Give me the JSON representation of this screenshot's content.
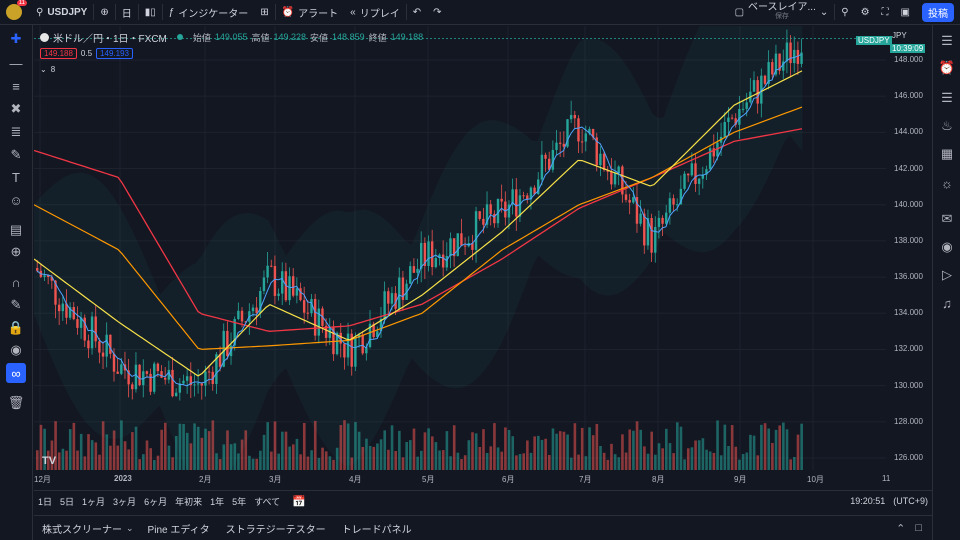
{
  "topbar": {
    "avatar_badge": "11",
    "symbol": "USDJPY",
    "interval": "日",
    "indicators_label": "インジケーター",
    "alert_label": "アラート",
    "replay_label": "リプレイ",
    "layout_title": "ベースレイア...",
    "layout_sub": "保存",
    "post_label": "投稿"
  },
  "legend": {
    "title": "米ドル／円・1日・FXCM",
    "o_label": "始値",
    "o": "149.055",
    "h_label": "高値",
    "h": "149.228",
    "l_label": "安値",
    "l": "148.859",
    "c_label": "終値",
    "c": "149.188",
    "bid": "149.188",
    "spread": "0.5",
    "ask": "149.193",
    "collapse": "8"
  },
  "price_axis": {
    "currency": "JPY",
    "last_badge": "USDJPY",
    "countdown": "10:39:09",
    "ticks": [
      "148.000",
      "146.000",
      "144.000",
      "142.000",
      "140.000",
      "138.000",
      "136.000",
      "134.000",
      "132.000",
      "130.000",
      "128.000",
      "126.000"
    ]
  },
  "time_axis": {
    "ticks": [
      "12月",
      "2023",
      "2月",
      "3月",
      "4月",
      "5月",
      "6月",
      "7月",
      "8月",
      "9月",
      "10月",
      "11"
    ]
  },
  "range_bar": {
    "items": [
      "1日",
      "5日",
      "1ヶ月",
      "3ヶ月",
      "6ヶ月",
      "年初来",
      "1年",
      "5年",
      "すべて"
    ],
    "clock": "19:20:51",
    "tz": "(UTC+9)"
  },
  "bottom": {
    "tabs": [
      "株式スクリーナー",
      "Pine エディタ",
      "ストラテジーテスター",
      "トレードパネル"
    ]
  },
  "colors": {
    "up": "#26a69a",
    "down": "#ef5350",
    "ma_red": "#f23645",
    "ma_orange": "#ff9800",
    "ma_yellow": "#f7e14a",
    "ma_blue": "#2962ff",
    "bb": "#1b8a80"
  },
  "chart_data": {
    "type": "candlestick",
    "symbol": "USDJPY",
    "ylim": [
      125,
      149.5
    ],
    "x": [
      "12月",
      "2023",
      "2月",
      "3月",
      "4月",
      "5月",
      "6月",
      "7月",
      "8月",
      "9月",
      "10月"
    ],
    "close": [
      136.5,
      131.0,
      130.0,
      136.0,
      132.0,
      137.0,
      139.5,
      144.5,
      138.0,
      145.0,
      149.2
    ],
    "ma_red": [
      143.0,
      141.5,
      134.0,
      133.0,
      133.3,
      134.5,
      137.0,
      139.8,
      141.5,
      143.5,
      144.2
    ],
    "ma_orange": [
      140.0,
      137.5,
      132.0,
      132.2,
      132.5,
      134.0,
      137.5,
      140.0,
      141.5,
      144.0,
      145.4
    ],
    "ma_yellow": [
      137.0,
      133.5,
      130.5,
      134.5,
      132.5,
      135.0,
      138.5,
      142.5,
      141.0,
      145.5,
      147.4
    ]
  }
}
